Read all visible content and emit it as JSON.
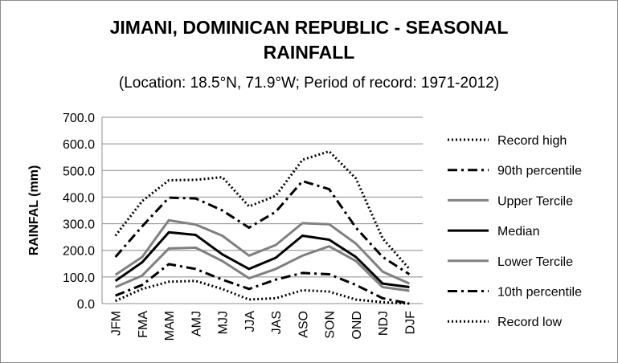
{
  "chart_data": {
    "type": "line",
    "title_line1": "JIMANI, DOMINICAN REPUBLIC - SEASONAL",
    "title_line2": "RAINFALL",
    "subtitle": "(Location: 18.5°N, 71.9°W; Period of record: 1971-2012)",
    "ylabel": "RAINFAL (mm)",
    "xlabel": "",
    "ylim": [
      0,
      700
    ],
    "yticks": [
      "0.0",
      "100.0",
      "200.0",
      "300.0",
      "400.0",
      "500.0",
      "600.0",
      "700.0"
    ],
    "grid": "horizontal",
    "legend_position": "right",
    "categories": [
      "JFM",
      "FMA",
      "MAM",
      "AMJ",
      "MJJ",
      "JJA",
      "JAS",
      "ASO",
      "SON",
      "OND",
      "NDJ",
      "DJF"
    ],
    "series": [
      {
        "name": "Record high",
        "color": "#000000",
        "dash": "dotted",
        "width": 3,
        "values": [
          255,
          385,
          463,
          465,
          475,
          365,
          405,
          540,
          572,
          470,
          245,
          130
        ]
      },
      {
        "name": "90th percentile",
        "color": "#000000",
        "dash": "dashdot",
        "width": 3,
        "values": [
          175,
          290,
          398,
          395,
          350,
          285,
          345,
          460,
          430,
          285,
          175,
          110
        ]
      },
      {
        "name": "Upper Tercile",
        "color": "#808080",
        "dash": "solid",
        "width": 3,
        "values": [
          108,
          175,
          313,
          297,
          255,
          180,
          220,
          302,
          298,
          225,
          120,
          75
        ]
      },
      {
        "name": "Median",
        "color": "#000000",
        "dash": "solid",
        "width": 3,
        "values": [
          85,
          155,
          268,
          258,
          185,
          130,
          172,
          255,
          240,
          175,
          75,
          62
        ]
      },
      {
        "name": "Lower Tercile",
        "color": "#808080",
        "dash": "solid",
        "width": 3,
        "values": [
          62,
          105,
          207,
          210,
          160,
          95,
          130,
          180,
          215,
          160,
          62,
          48
        ]
      },
      {
        "name": "10th percentile",
        "color": "#000000",
        "dash": "dashdot",
        "width": 3,
        "values": [
          30,
          70,
          148,
          130,
          90,
          55,
          90,
          115,
          110,
          70,
          20,
          0
        ]
      },
      {
        "name": "Record low",
        "color": "#000000",
        "dash": "dotted",
        "width": 3,
        "values": [
          10,
          55,
          82,
          85,
          55,
          15,
          20,
          50,
          45,
          15,
          5,
          0
        ]
      }
    ]
  }
}
